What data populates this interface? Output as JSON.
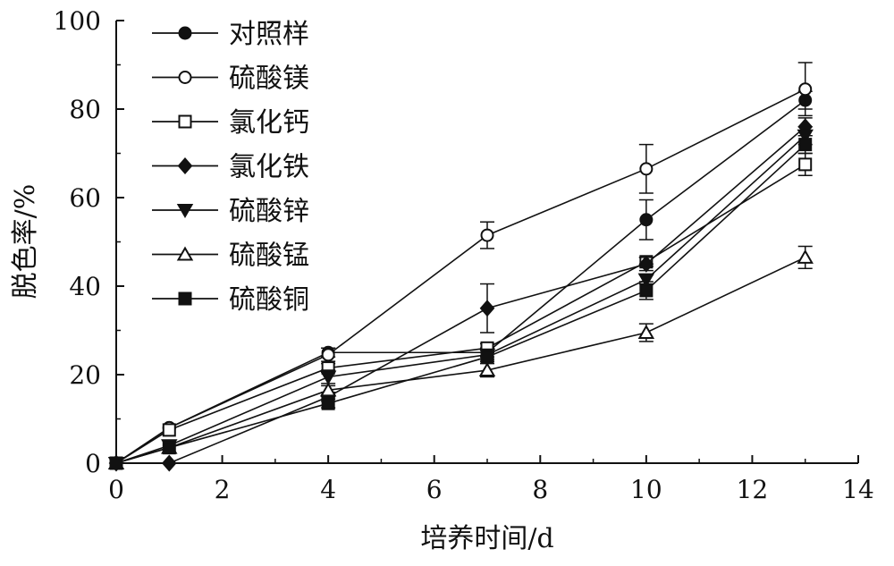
{
  "chart_data": {
    "type": "line",
    "xlabel": "培养时间/d",
    "ylabel": "脱色率/%",
    "xlim": [
      0,
      14
    ],
    "ylim": [
      0,
      100
    ],
    "xticks": [
      0,
      2,
      4,
      6,
      8,
      10,
      12,
      14
    ],
    "yticks": [
      0,
      20,
      40,
      60,
      80,
      100
    ],
    "grid": false,
    "legend_position": "top-left",
    "x": [
      0,
      1,
      4,
      7,
      10,
      13
    ],
    "series": [
      {
        "name": "对照样",
        "marker": "filled-circle",
        "values": [
          0,
          8,
          25,
          25,
          55,
          82
        ],
        "errors": [
          0,
          0.5,
          1,
          1,
          4.5,
          2
        ]
      },
      {
        "name": "硫酸镁",
        "marker": "open-circle",
        "values": [
          0,
          8,
          24.5,
          51.5,
          66.5,
          84.5
        ],
        "errors": [
          0,
          0.5,
          1.5,
          3,
          5.5,
          6
        ]
      },
      {
        "name": "氯化钙",
        "marker": "open-square",
        "values": [
          0,
          7.5,
          21.5,
          26,
          45.5,
          67.5
        ],
        "errors": [
          0,
          0.5,
          1,
          1,
          1,
          2.5
        ]
      },
      {
        "name": "氯化铁",
        "marker": "filled-diamond",
        "values": [
          0,
          0,
          15,
          35,
          45,
          76
        ],
        "errors": [
          0,
          0.5,
          1,
          5.5,
          1.5,
          2
        ]
      },
      {
        "name": "硫酸锌",
        "marker": "filled-triangle-down",
        "values": [
          0,
          4,
          19.5,
          24.5,
          41.5,
          74
        ],
        "errors": [
          0,
          0.5,
          1.5,
          1,
          1,
          2
        ]
      },
      {
        "name": "硫酸锰",
        "marker": "open-triangle-up",
        "values": [
          0,
          3.5,
          16.5,
          21,
          29.5,
          46.5
        ],
        "errors": [
          0,
          0.5,
          1,
          1.5,
          2,
          2.5
        ]
      },
      {
        "name": "硫酸铜",
        "marker": "filled-square",
        "values": [
          0,
          3.5,
          13.5,
          24,
          39,
          72
        ],
        "errors": [
          0,
          0.5,
          1,
          1,
          2,
          2
        ]
      }
    ]
  }
}
